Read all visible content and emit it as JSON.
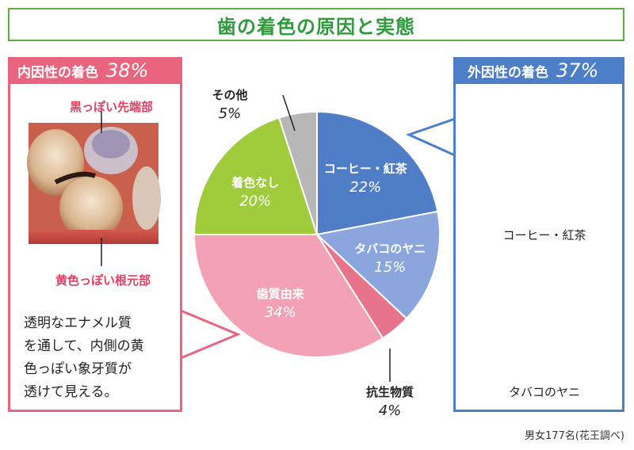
{
  "title": "歯の着色の原因と実態",
  "left_panel": {
    "label": "内因性の着色",
    "percent": "38%",
    "photo_label_top": "黒っぽい先端部",
    "photo_label_bottom": "黄色っぽい根元部",
    "description_lines": [
      "透明なエナメル質",
      "を通して、内側の黄",
      "色っぽい象牙質が",
      "透けて見える。"
    ],
    "color": "#e9647e"
  },
  "right_panel": {
    "label": "外因性の着色",
    "percent": "37%",
    "photo1_caption": "コーヒー・紅茶",
    "photo2_caption": "タバコのヤニ",
    "color": "#4d7fc8"
  },
  "source": "男女177名(花王調べ)",
  "chart_data": {
    "type": "pie",
    "title": "",
    "start_angle_deg": 0,
    "direction": "clockwise",
    "slices": [
      {
        "label": "コーヒー・紅茶",
        "value": 22,
        "pct_label": "22%",
        "color": "#4f7ec6",
        "label_position": "inside"
      },
      {
        "label": "タバコのヤニ",
        "value": 15,
        "pct_label": "15%",
        "color": "#8aa6dc",
        "label_position": "inside"
      },
      {
        "label": "抗生物質",
        "value": 4,
        "pct_label": "4%",
        "color": "#e8748c",
        "label_position": "outside"
      },
      {
        "label": "歯質由来",
        "value": 34,
        "pct_label": "34%",
        "color": "#f2a2b4",
        "label_position": "inside"
      },
      {
        "label": "着色なし",
        "value": 20,
        "pct_label": "20%",
        "color": "#9fcb3c",
        "label_position": "inside"
      },
      {
        "label": "その他",
        "value": 5,
        "pct_label": "5%",
        "color": "#b7b7b7",
        "label_position": "outside"
      }
    ]
  }
}
